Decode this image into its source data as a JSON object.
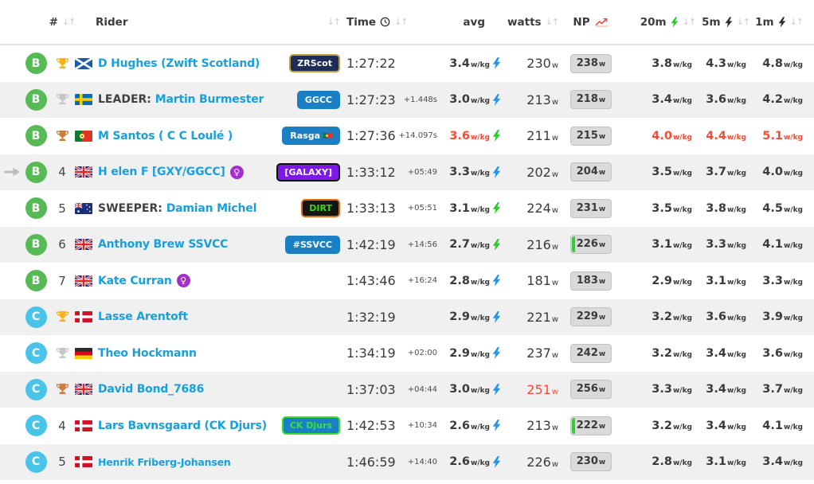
{
  "colors": {
    "link": "#18a0dc",
    "alert": "#fb4a2e",
    "sort_icon": "#c9cdd1",
    "row_alt": "#f0f0f0",
    "np_badge_bg": "#dadada",
    "np_badge_border": "#c2c2c2",
    "np_green_bar": "#33cc33",
    "gap_text": "#4e4e4e",
    "name_prefix": "#414141"
  },
  "category_colors": {
    "B": "#57ba57",
    "C": "#49c3e8"
  },
  "trophy_colors": {
    "gold": "#f5b318",
    "silver": "#c3c7cb",
    "bronze": "#cd7d3c"
  },
  "bolt_colors": {
    "blue": "#2196e8",
    "green": "#2fc82f",
    "dark": "#2e2e2e"
  },
  "units": {
    "wkg": "w/kg",
    "w": "w"
  },
  "icons": {
    "sort": "↓↑",
    "female": "♀"
  },
  "header": {
    "pos": "#",
    "rider": "Rider",
    "time": "Time",
    "avg": "avg",
    "watts": "watts",
    "np": "NP",
    "m20": "20m",
    "m5": "5m",
    "m1": "1m"
  },
  "table": {
    "rows": [
      {
        "cat": "B",
        "trophy": "gold",
        "pos": "",
        "arrow": false,
        "flag": "scotland",
        "prefix": "",
        "name": "D Hughes (Zwift Scotland)",
        "female": false,
        "small": false,
        "team": {
          "label": "ZRScot",
          "bg": "#1e2d56",
          "color": "#ffffff",
          "border": "#c29b40"
        },
        "time": "1:27:22",
        "gap": "",
        "avg": "3.4",
        "avg_red": false,
        "bolt": "blue",
        "watts": "230",
        "watts_red": false,
        "np": "238",
        "np_bar": false,
        "m20": "3.8",
        "m5": "4.3",
        "m1": "4.8",
        "cp_red": false
      },
      {
        "cat": "B",
        "trophy": "silver",
        "pos": "",
        "arrow": false,
        "flag": "sweden",
        "prefix": "LEADER: ",
        "name": "Martin Burmester",
        "female": false,
        "small": false,
        "team": {
          "label": "GGCC",
          "bg": "#1a7fc3",
          "color": "#ffffff",
          "border": ""
        },
        "time": "1:27:23",
        "gap": "+1.448s",
        "avg": "3.0",
        "avg_red": false,
        "bolt": "blue",
        "watts": "213",
        "watts_red": false,
        "np": "218",
        "np_bar": false,
        "m20": "3.4",
        "m5": "3.6",
        "m1": "4.2",
        "cp_red": false
      },
      {
        "cat": "B",
        "trophy": "bronze",
        "pos": "",
        "arrow": false,
        "flag": "portugal",
        "prefix": "",
        "name": "M Santos ( C C Loulé )",
        "female": false,
        "small": false,
        "team": {
          "label": "Rasga",
          "bg": "#1a7fc3",
          "color": "#ffffff",
          "border": "",
          "flag": true
        },
        "time": "1:27:36",
        "gap": "+14.097s",
        "avg": "3.6",
        "avg_red": true,
        "bolt": "green",
        "watts": "211",
        "watts_red": false,
        "np": "215",
        "np_bar": false,
        "m20": "4.0",
        "m5": "4.4",
        "m1": "5.1",
        "cp_red": true
      },
      {
        "cat": "B",
        "trophy": "",
        "pos": "4",
        "arrow": true,
        "flag": "uk",
        "prefix": "",
        "name": "H elen F [GXY/GGCC]",
        "female": true,
        "small": false,
        "team": {
          "label": "[GALAXY]",
          "bg": "#7d18e8",
          "color": "#ffffff",
          "border": "#111111"
        },
        "time": "1:33:12",
        "gap": "+05:49",
        "avg": "3.3",
        "avg_red": false,
        "bolt": "blue",
        "watts": "202",
        "watts_red": false,
        "np": "204",
        "np_bar": false,
        "m20": "3.5",
        "m5": "3.7",
        "m1": "4.0",
        "cp_red": false
      },
      {
        "cat": "B",
        "trophy": "",
        "pos": "5",
        "arrow": false,
        "flag": "australia",
        "prefix": "SWEEPER: ",
        "name": "Damian Michel",
        "female": false,
        "small": false,
        "team": {
          "label": "DIRT",
          "bg": "#151515",
          "color": "#43d01f",
          "border": "#e06a10"
        },
        "time": "1:33:13",
        "gap": "+05:51",
        "avg": "3.1",
        "avg_red": false,
        "bolt": "green",
        "watts": "224",
        "watts_red": false,
        "np": "231",
        "np_bar": false,
        "m20": "3.5",
        "m5": "3.8",
        "m1": "4.5",
        "cp_red": false
      },
      {
        "cat": "B",
        "trophy": "",
        "pos": "6",
        "arrow": false,
        "flag": "uk",
        "prefix": "",
        "name": "Anthony Brew SSVCC",
        "female": false,
        "small": false,
        "team": {
          "label": "#SSVCC",
          "bg": "#1a7fc3",
          "color": "#ffffff",
          "border": ""
        },
        "time": "1:42:19",
        "gap": "+14:56",
        "avg": "2.7",
        "avg_red": false,
        "bolt": "green",
        "watts": "216",
        "watts_red": false,
        "np": "226",
        "np_bar": true,
        "m20": "3.1",
        "m5": "3.3",
        "m1": "4.1",
        "cp_red": false
      },
      {
        "cat": "B",
        "trophy": "",
        "pos": "7",
        "arrow": false,
        "flag": "uk",
        "prefix": "",
        "name": "Kate Curran",
        "female": true,
        "small": false,
        "team": null,
        "time": "1:43:46",
        "gap": "+16:24",
        "avg": "2.8",
        "avg_red": false,
        "bolt": "blue",
        "watts": "181",
        "watts_red": false,
        "np": "183",
        "np_bar": false,
        "m20": "2.9",
        "m5": "3.1",
        "m1": "3.3",
        "cp_red": false
      },
      {
        "cat": "C",
        "trophy": "gold",
        "pos": "",
        "arrow": false,
        "flag": "denmark",
        "prefix": "",
        "name": "Lasse Arentoft",
        "female": false,
        "small": false,
        "team": null,
        "time": "1:32:19",
        "gap": "",
        "avg": "2.9",
        "avg_red": false,
        "bolt": "blue",
        "watts": "221",
        "watts_red": false,
        "np": "229",
        "np_bar": false,
        "m20": "3.2",
        "m5": "3.6",
        "m1": "3.9",
        "cp_red": false
      },
      {
        "cat": "C",
        "trophy": "silver",
        "pos": "",
        "arrow": false,
        "flag": "germany",
        "prefix": "",
        "name": "Theo Hockmann",
        "female": false,
        "small": false,
        "team": null,
        "time": "1:34:19",
        "gap": "+02:00",
        "avg": "2.9",
        "avg_red": false,
        "bolt": "blue",
        "watts": "237",
        "watts_red": false,
        "np": "242",
        "np_bar": false,
        "m20": "3.2",
        "m5": "3.4",
        "m1": "3.6",
        "cp_red": false
      },
      {
        "cat": "C",
        "trophy": "bronze",
        "pos": "",
        "arrow": false,
        "flag": "uk",
        "prefix": "",
        "name": "David Bond_7686",
        "female": false,
        "small": false,
        "team": null,
        "time": "1:37:03",
        "gap": "+04:44",
        "avg": "3.0",
        "avg_red": false,
        "bolt": "blue",
        "watts": "251",
        "watts_red": true,
        "np": "256",
        "np_bar": false,
        "m20": "3.3",
        "m5": "3.4",
        "m1": "3.7",
        "cp_red": false
      },
      {
        "cat": "C",
        "trophy": "",
        "pos": "4",
        "arrow": false,
        "flag": "denmark",
        "prefix": "",
        "name": "Lars Bavnsgaard (CK Djurs)",
        "female": false,
        "small": false,
        "team": {
          "label": "CK Djurs",
          "bg": "#1a7fc3",
          "color": "#3ce03c",
          "border": "#35e02a"
        },
        "time": "1:42:53",
        "gap": "+10:34",
        "avg": "2.6",
        "avg_red": false,
        "bolt": "blue",
        "watts": "213",
        "watts_red": false,
        "np": "222",
        "np_bar": true,
        "m20": "3.2",
        "m5": "3.4",
        "m1": "4.1",
        "cp_red": false
      },
      {
        "cat": "C",
        "trophy": "",
        "pos": "5",
        "arrow": false,
        "flag": "denmark",
        "prefix": "",
        "name": "Henrik Friberg-Johansen",
        "female": false,
        "small": true,
        "team": null,
        "time": "1:46:59",
        "gap": "+14:40",
        "avg": "2.6",
        "avg_red": false,
        "bolt": "blue",
        "watts": "226",
        "watts_red": false,
        "np": "230",
        "np_bar": false,
        "m20": "2.8",
        "m5": "3.1",
        "m1": "3.4",
        "cp_red": false
      }
    ]
  }
}
